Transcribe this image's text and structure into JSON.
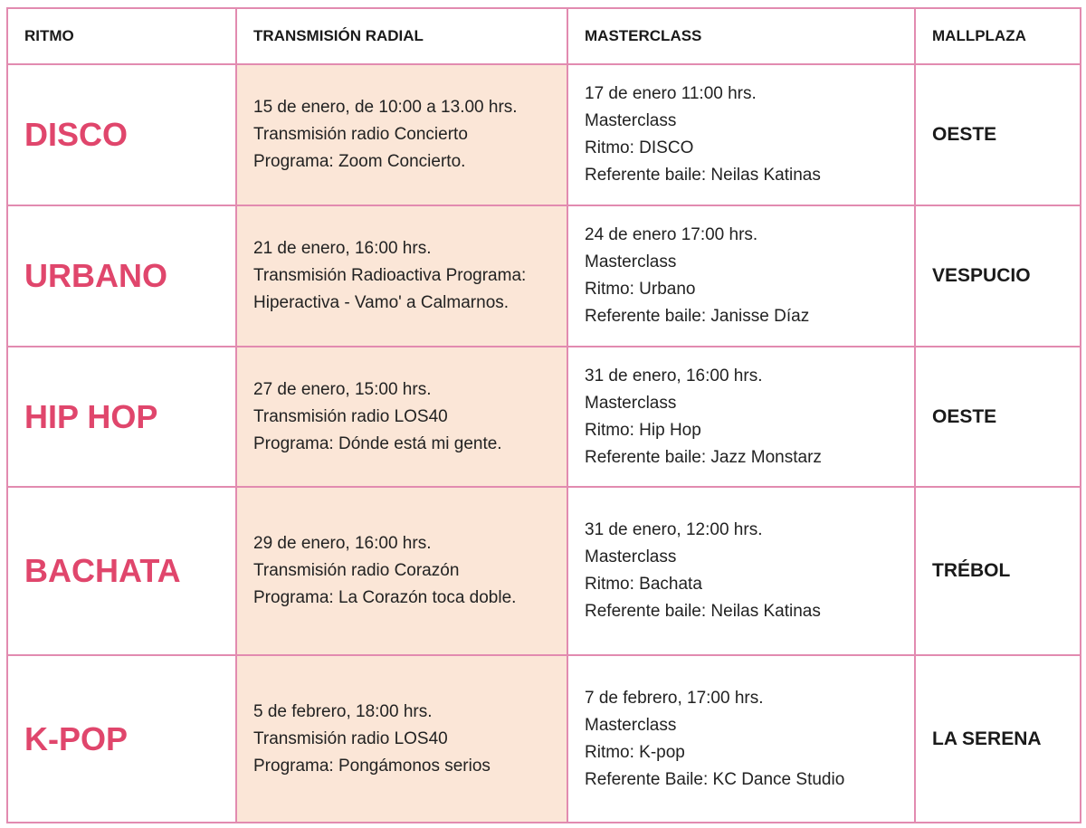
{
  "table": {
    "header": [
      "RITMO",
      "TRANSMISIÓN RADIAL",
      "MASTERCLASS",
      "MALLPLAZA"
    ],
    "rows": [
      {
        "ritmo": "DISCO",
        "radio": [
          "15 de enero, de 10:00 a 13.00 hrs.",
          "Transmisión radio Concierto",
          "Programa: Zoom Concierto."
        ],
        "masterclass": [
          "17 de enero 11:00 hrs.",
          "Masterclass",
          "Ritmo: DISCO",
          "Referente baile: Neilas Katinas"
        ],
        "mallplaza": "OESTE"
      },
      {
        "ritmo": "URBANO",
        "radio": [
          "21 de enero, 16:00 hrs.",
          "Transmisión Radioactiva Programa:",
          "Hiperactiva - Vamo' a Calmarnos."
        ],
        "masterclass": [
          "24 de enero 17:00 hrs.",
          "Masterclass",
          "Ritmo: Urbano",
          "Referente baile: Janisse Díaz"
        ],
        "mallplaza": "VESPUCIO"
      },
      {
        "ritmo": "HIP HOP",
        "radio": [
          "27 de enero, 15:00 hrs.",
          "Transmisión radio LOS40",
          "Programa: Dónde está mi gente."
        ],
        "masterclass": [
          "31 de enero, 16:00 hrs.",
          "Masterclass",
          "Ritmo: Hip Hop",
          "Referente baile: Jazz Monstarz"
        ],
        "mallplaza": "OESTE"
      },
      {
        "ritmo": "BACHATA",
        "radio": [
          "29 de enero, 16:00 hrs.",
          "Transmisión radio Corazón",
          "Programa: La Corazón toca doble."
        ],
        "masterclass": [
          "31 de enero, 12:00 hrs.",
          "Masterclass",
          "Ritmo: Bachata",
          "Referente baile: Neilas Katinas"
        ],
        "mallplaza": "TRÉBOL"
      },
      {
        "ritmo": "K-POP",
        "radio": [
          "5 de febrero, 18:00 hrs.",
          "Transmisión radio LOS40",
          "Programa: Pongámonos serios"
        ],
        "masterclass": [
          "7 de febrero, 17:00 hrs.",
          "Masterclass",
          "Ritmo: K-pop",
          "Referente Baile: KC Dance Studio"
        ],
        "mallplaza": "LA SERENA"
      }
    ]
  }
}
